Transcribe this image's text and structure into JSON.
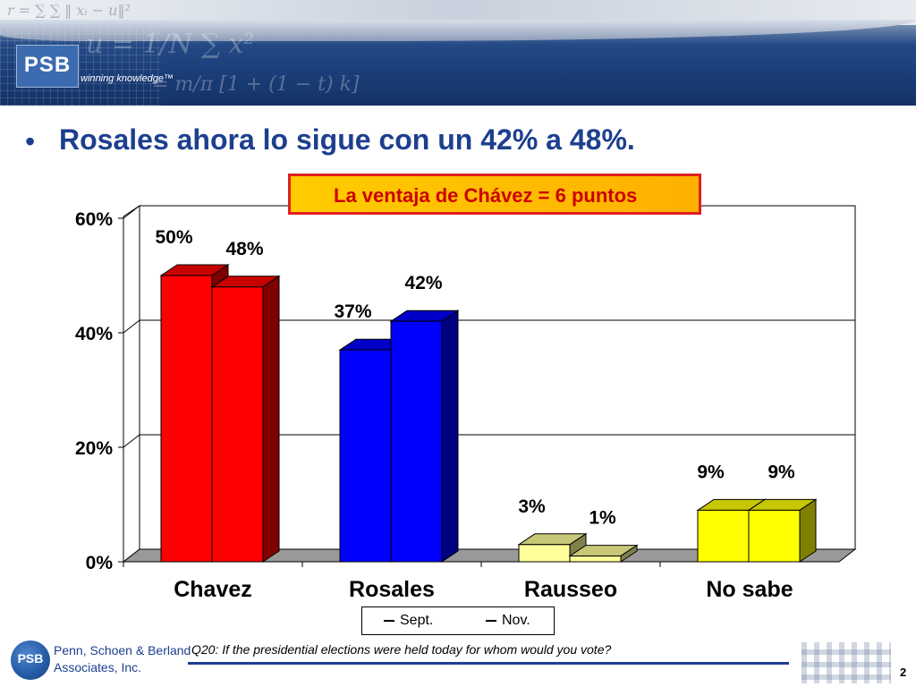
{
  "header": {
    "logo_text": "PSB",
    "tagline": "winning knowledge™",
    "formulas": [
      "r = ∑ ∑ ‖ xᵢ − u‖²",
      "u = 1/N ∑ x²",
      "= m/π [1 + (1 − t) k]"
    ]
  },
  "headline": {
    "bullet": "•",
    "text": "Rosales ahora lo sigue con un 42% a 48%."
  },
  "callout": {
    "text": "La ventaja de Chávez  = 6 puntos"
  },
  "chart_data": {
    "type": "bar",
    "categories": [
      "Chavez",
      "Rosales",
      "Rausseo",
      "No sabe"
    ],
    "series": [
      {
        "name": "Sept.",
        "values": [
          50,
          37,
          3,
          9
        ],
        "labels": [
          "50%",
          "37%",
          "3%",
          "9%"
        ]
      },
      {
        "name": "Nov.",
        "values": [
          48,
          42,
          1,
          9
        ],
        "labels": [
          "48%",
          "42%",
          "1%",
          "9%"
        ]
      }
    ],
    "ylim": [
      0,
      60
    ],
    "yticks": [
      0,
      20,
      40,
      60
    ],
    "ytick_labels": [
      "0%",
      "20%",
      "40%",
      "60%"
    ],
    "grid": true,
    "legend_position": "bottom",
    "colors": {
      "Chavez": [
        "#ff0000",
        "#ff0000"
      ],
      "Rosales": [
        "#0000ff",
        "#0000ff"
      ],
      "Rausseo": [
        "#ffff99",
        "#ffff99"
      ],
      "No sabe": [
        "#ffff00",
        "#ffff00"
      ]
    }
  },
  "legend": {
    "items": [
      "Sept.",
      "Nov."
    ]
  },
  "footer": {
    "logo_text": "PSB",
    "firm_line1": "Penn, Schoen & Berland",
    "firm_line2": "Associates, Inc.",
    "question": "Q20: If the presidential elections were held today for whom would you vote?",
    "page_number": "2"
  }
}
